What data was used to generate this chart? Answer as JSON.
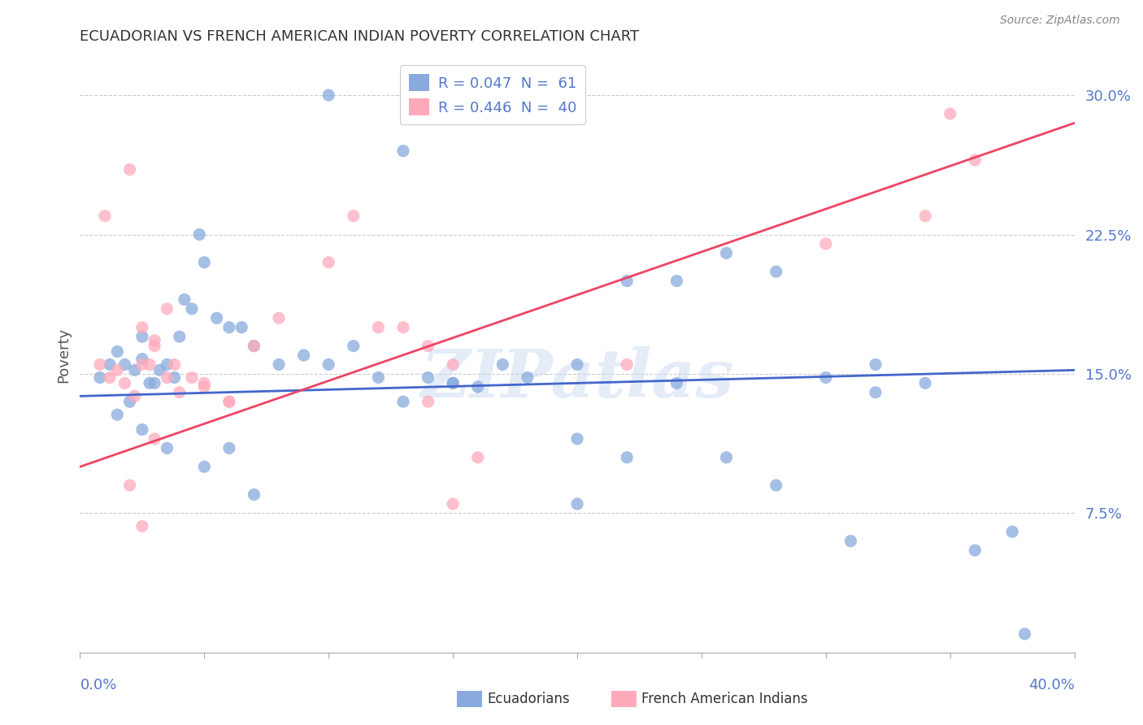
{
  "title": "ECUADORIAN VS FRENCH AMERICAN INDIAN POVERTY CORRELATION CHART",
  "source": "Source: ZipAtlas.com",
  "ylabel": "Poverty",
  "yticks": [
    "7.5%",
    "15.0%",
    "22.5%",
    "30.0%"
  ],
  "ytick_vals": [
    0.075,
    0.15,
    0.225,
    0.3
  ],
  "xlim": [
    0.0,
    0.4
  ],
  "ylim": [
    0.0,
    0.32
  ],
  "blue_color": "#88aadd",
  "pink_color": "#ffaabb",
  "blue_line_color": "#4466cc",
  "pink_line_color": "#ee4466",
  "tick_label_color": "#5577cc",
  "watermark": "ZIPatlas",
  "blue_scatter_x": [
    0.008,
    0.012,
    0.015,
    0.018,
    0.02,
    0.022,
    0.025,
    0.025,
    0.028,
    0.03,
    0.032,
    0.035,
    0.038,
    0.04,
    0.042,
    0.045,
    0.048,
    0.05,
    0.055,
    0.06,
    0.065,
    0.07,
    0.08,
    0.09,
    0.1,
    0.11,
    0.12,
    0.13,
    0.14,
    0.15,
    0.16,
    0.17,
    0.18,
    0.2,
    0.22,
    0.24,
    0.26,
    0.28,
    0.3,
    0.32,
    0.015,
    0.025,
    0.035,
    0.05,
    0.06,
    0.07,
    0.1,
    0.13,
    0.15,
    0.2,
    0.22,
    0.24,
    0.32,
    0.34,
    0.36,
    0.375,
    0.28,
    0.2,
    0.26,
    0.31,
    0.38
  ],
  "blue_scatter_y": [
    0.148,
    0.155,
    0.162,
    0.155,
    0.135,
    0.152,
    0.17,
    0.158,
    0.145,
    0.145,
    0.152,
    0.155,
    0.148,
    0.17,
    0.19,
    0.185,
    0.225,
    0.21,
    0.18,
    0.175,
    0.175,
    0.165,
    0.155,
    0.16,
    0.155,
    0.165,
    0.148,
    0.135,
    0.148,
    0.145,
    0.143,
    0.155,
    0.148,
    0.155,
    0.2,
    0.2,
    0.215,
    0.205,
    0.148,
    0.14,
    0.128,
    0.12,
    0.11,
    0.1,
    0.11,
    0.085,
    0.3,
    0.27,
    0.145,
    0.08,
    0.105,
    0.145,
    0.155,
    0.145,
    0.055,
    0.065,
    0.09,
    0.115,
    0.105,
    0.06,
    0.01
  ],
  "pink_scatter_x": [
    0.008,
    0.012,
    0.015,
    0.018,
    0.022,
    0.025,
    0.028,
    0.03,
    0.035,
    0.04,
    0.045,
    0.05,
    0.06,
    0.07,
    0.08,
    0.1,
    0.11,
    0.12,
    0.13,
    0.14,
    0.01,
    0.02,
    0.025,
    0.03,
    0.035,
    0.038,
    0.05,
    0.06,
    0.14,
    0.15,
    0.02,
    0.03,
    0.15,
    0.16,
    0.22,
    0.3,
    0.34,
    0.36,
    0.025,
    0.35
  ],
  "pink_scatter_y": [
    0.155,
    0.148,
    0.152,
    0.145,
    0.138,
    0.155,
    0.155,
    0.165,
    0.148,
    0.14,
    0.148,
    0.143,
    0.135,
    0.165,
    0.18,
    0.21,
    0.235,
    0.175,
    0.175,
    0.165,
    0.235,
    0.26,
    0.175,
    0.168,
    0.185,
    0.155,
    0.145,
    0.135,
    0.135,
    0.155,
    0.09,
    0.115,
    0.08,
    0.105,
    0.155,
    0.22,
    0.235,
    0.265,
    0.068,
    0.29
  ],
  "blue_line_x": [
    0.0,
    0.4
  ],
  "blue_line_y": [
    0.138,
    0.152
  ],
  "pink_line_x": [
    0.0,
    0.4
  ],
  "pink_line_y": [
    0.1,
    0.285
  ]
}
